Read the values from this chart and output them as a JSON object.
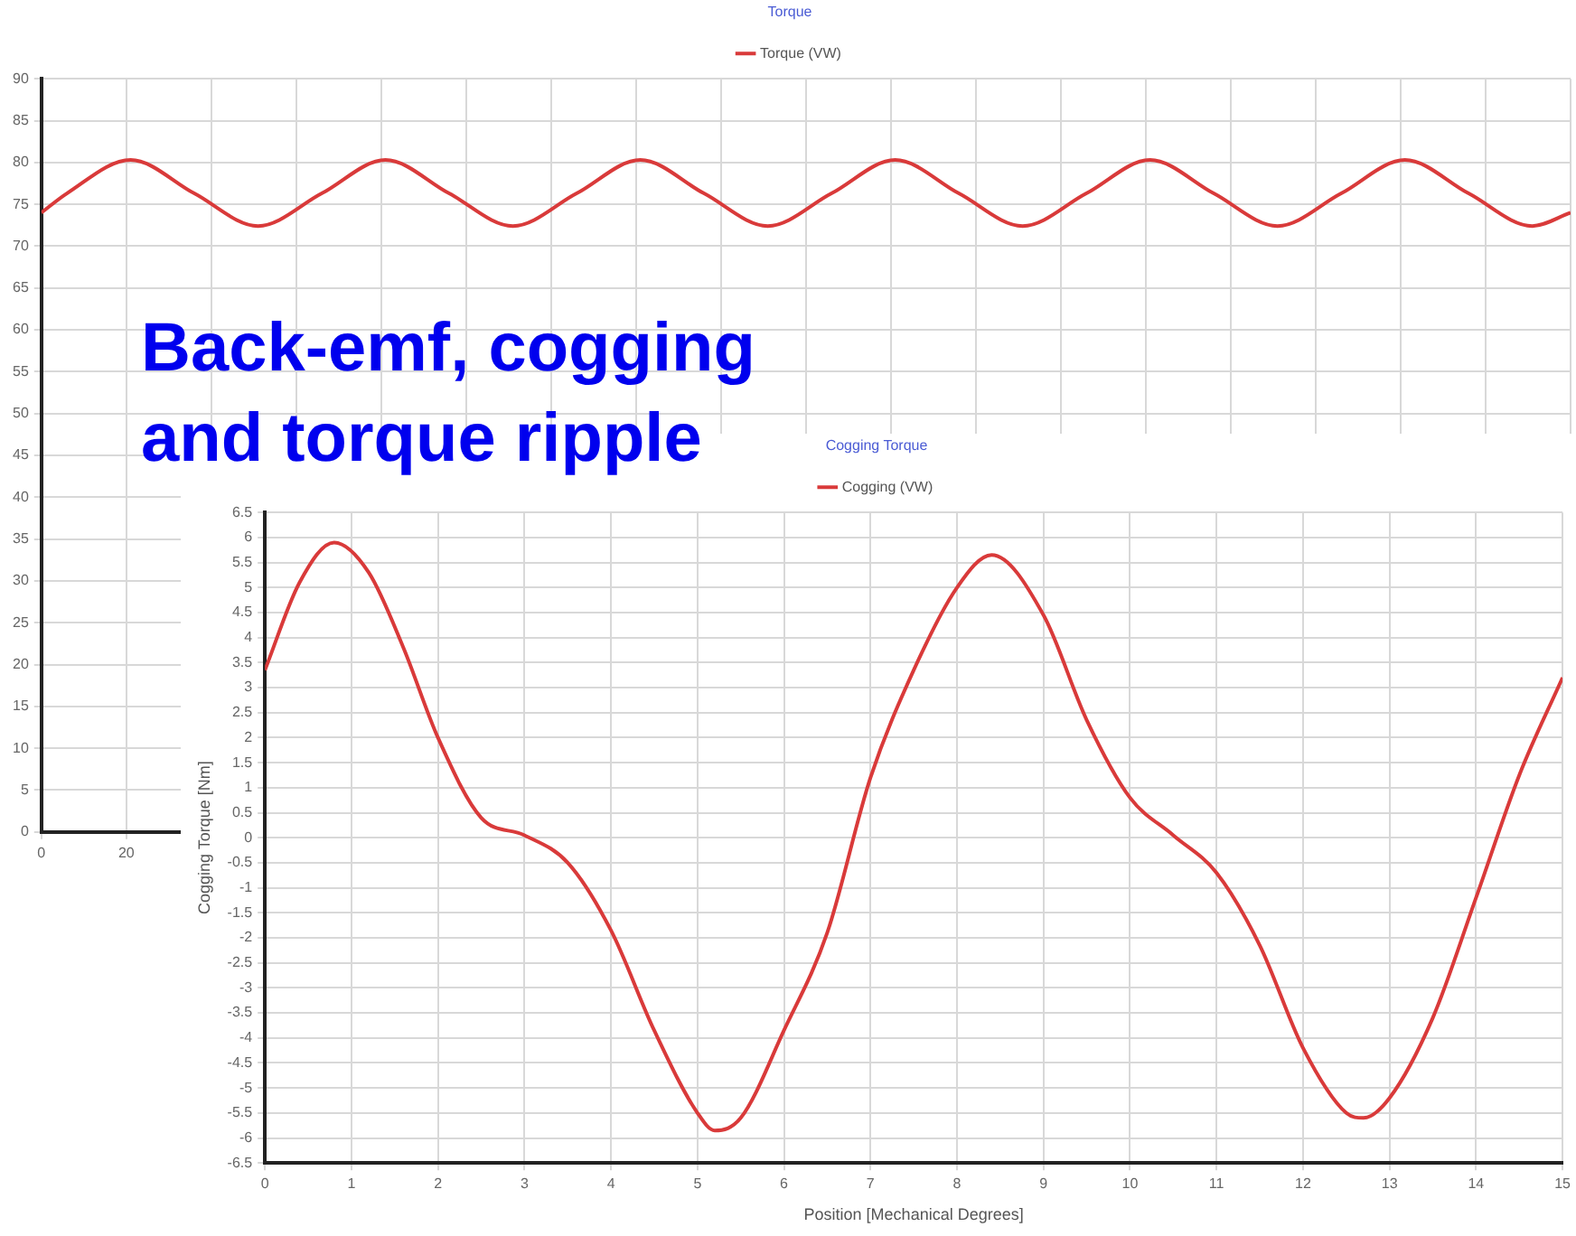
{
  "chart_data": [
    {
      "type": "line",
      "title": "Torque",
      "legend": "top",
      "grid": true,
      "marker": "none",
      "line_style": "solid",
      "annotations": [
        "Back-emf, cogging and torque ripple"
      ],
      "xlim": [
        0,
        360
      ],
      "xticks": [
        0,
        20,
        {
          "value": 40,
          "label": null
        },
        {
          "value": 60,
          "label": null
        },
        {
          "value": 80,
          "label": null
        },
        {
          "value": 100,
          "label": null
        },
        {
          "value": 120,
          "label": null
        },
        {
          "value": 140,
          "label": null
        },
        {
          "value": 160,
          "label": null
        },
        {
          "value": 180,
          "label": null
        },
        {
          "value": 200,
          "label": null
        },
        {
          "value": 220,
          "label": null
        },
        {
          "value": 240,
          "label": null
        },
        {
          "value": 260,
          "label": null
        },
        {
          "value": 280,
          "label": null
        },
        {
          "value": 300,
          "label": null
        },
        {
          "value": 320,
          "label": null
        },
        {
          "value": 340,
          "label": null
        },
        {
          "value": 360,
          "label": null
        }
      ],
      "ylim": [
        0,
        90
      ],
      "yticks": [
        0,
        5,
        10,
        15,
        20,
        25,
        30,
        35,
        40,
        45,
        50,
        55,
        60,
        65,
        70,
        75,
        80,
        85,
        90
      ],
      "x": [
        0,
        6,
        21,
        36,
        51,
        66,
        81,
        96,
        111,
        126,
        141,
        156,
        171,
        186,
        201,
        216,
        231,
        246,
        261,
        276,
        291,
        306,
        321,
        336,
        351,
        360
      ],
      "series": [
        {
          "name": "Torque (VW)",
          "color": "#d93a3a",
          "values": [
            74.0,
            76.3,
            80.3,
            76.3,
            72.4,
            76.3,
            80.3,
            76.3,
            72.4,
            76.3,
            80.3,
            76.3,
            72.4,
            76.3,
            80.3,
            76.3,
            72.4,
            76.3,
            80.3,
            76.3,
            72.4,
            76.3,
            80.3,
            76.3,
            72.4,
            74.0
          ]
        }
      ]
    },
    {
      "type": "line",
      "title": "Cogging Torque",
      "legend": "top",
      "grid": true,
      "marker": "none",
      "line_style": "solid",
      "xlabel": "Position [Mechanical Degrees]",
      "ylabel": "Cogging Torque [Nm]",
      "xlim": [
        0,
        15
      ],
      "xticks": [
        0,
        1,
        2,
        3,
        4,
        5,
        6,
        7,
        8,
        9,
        10,
        11,
        12,
        13,
        14,
        15
      ],
      "ylim": [
        -6.5,
        6.5
      ],
      "yticks": [
        -6.5,
        -6,
        -5.5,
        -5,
        -4.5,
        -4,
        -3.5,
        -3,
        -2.5,
        -2,
        -1.5,
        -1,
        -0.5,
        0,
        0.5,
        1,
        1.5,
        2,
        2.5,
        3,
        3.5,
        4,
        4.5,
        5,
        5.5,
        6,
        6.5
      ],
      "x": [
        0,
        0.4,
        0.8,
        1.2,
        1.6,
        2,
        2.5,
        3,
        3.5,
        4,
        4.5,
        5,
        5.2,
        5.5,
        6,
        6.5,
        7,
        7.5,
        8,
        8.4,
        9,
        9.5,
        10,
        10.5,
        11,
        11.5,
        12,
        12.5,
        12.7,
        13,
        13.5,
        14,
        14.5,
        15
      ],
      "series": [
        {
          "name": "Cogging (VW)",
          "color": "#d93a3a",
          "values": [
            3.35,
            5.1,
            5.9,
            5.3,
            3.8,
            2.0,
            0.4,
            0.05,
            -0.5,
            -1.85,
            -3.85,
            -5.5,
            -5.85,
            -5.6,
            -3.85,
            -1.9,
            1.2,
            3.35,
            5.0,
            5.65,
            4.45,
            2.35,
            0.8,
            0.05,
            -0.7,
            -2.15,
            -4.2,
            -5.5,
            -5.6,
            -5.2,
            -3.6,
            -1.2,
            1.25,
            3.2
          ]
        }
      ]
    }
  ]
}
